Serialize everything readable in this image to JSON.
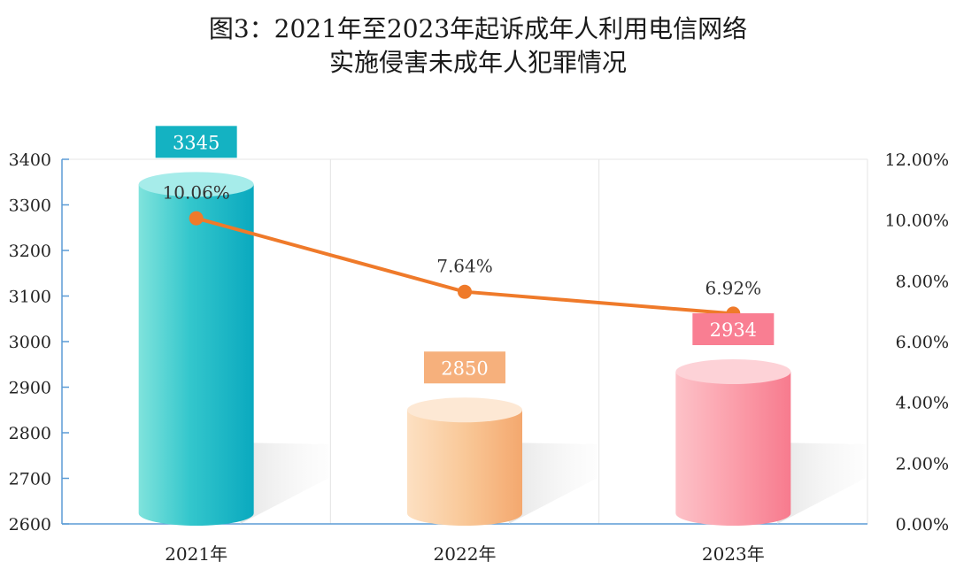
{
  "title": {
    "line1": "图3：2021年至2023年起诉成年人利用电信网络",
    "line2": "实施侵害未成年人犯罪情况"
  },
  "chart_data": {
    "type": "bar",
    "categories": [
      "2021年",
      "2022年",
      "2023年"
    ],
    "series": [
      {
        "values": [
          3345,
          2850,
          2934
        ],
        "colors": [
          "#14b2c2",
          "#f6b07c",
          "#f97e92"
        ]
      },
      {
        "type": "line",
        "values": [
          10.06,
          7.64,
          6.92
        ],
        "labels": [
          "10.06%",
          "7.64%",
          "6.92%"
        ],
        "color": "#ef7a2a"
      }
    ],
    "ylim": [
      2600,
      3400
    ],
    "yticks": [
      2600,
      2700,
      2800,
      2900,
      3000,
      3100,
      3200,
      3300,
      3400
    ],
    "y2lim": [
      0,
      12
    ],
    "y2ticks": [
      "0.00%",
      "2.00%",
      "4.00%",
      "6.00%",
      "8.00%",
      "10.00%",
      "12.00%"
    ],
    "grid": true,
    "legend": "none"
  }
}
